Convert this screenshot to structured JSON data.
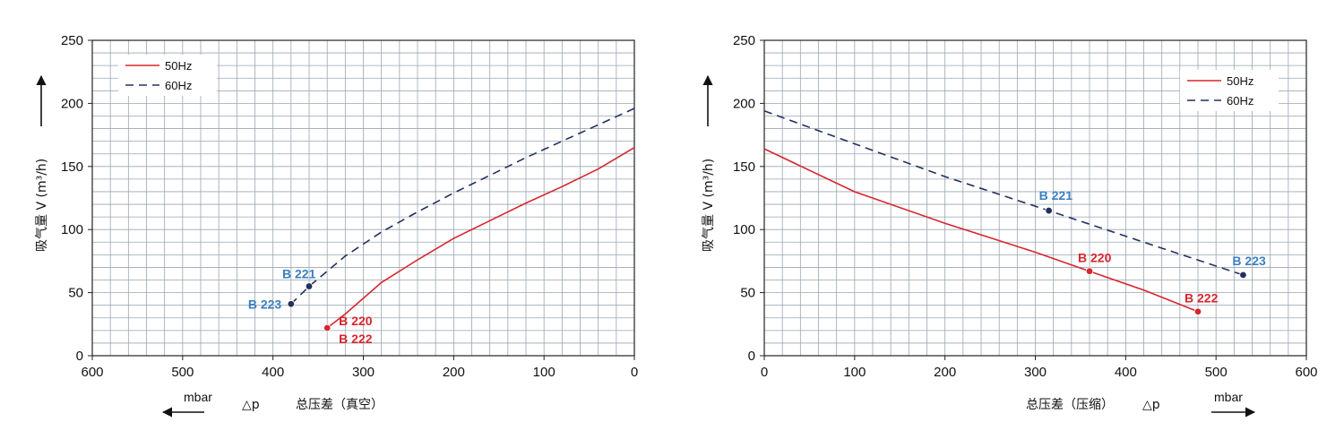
{
  "colors": {
    "grid": "#9aa6b2",
    "series_50": "#d7262e",
    "series_60": "#23305f",
    "label_blue": "#3a7fc1",
    "label_red": "#d7262e"
  },
  "chart_data": [
    {
      "type": "line",
      "xlabel": "总压差（真空）",
      "xlabel_symbol": "△p",
      "ylabel": "吸气量 V (m³/h)",
      "unit": "mbar",
      "xlim": [
        0,
        600
      ],
      "x_reversed": true,
      "ylim": [
        0,
        250
      ],
      "grid": true,
      "legend_position": "top-left",
      "x_ticks": [
        "0",
        "100",
        "200",
        "300",
        "400",
        "500",
        "600"
      ],
      "y_ticks": [
        "0",
        "50",
        "100",
        "150",
        "200",
        "250"
      ],
      "series": [
        {
          "name": "50Hz",
          "style": "solid",
          "x": [
            0,
            40,
            80,
            120,
            160,
            200,
            240,
            280,
            320,
            340
          ],
          "y": [
            165,
            148,
            134,
            121,
            107,
            93,
            76,
            58,
            33,
            22
          ]
        },
        {
          "name": "60Hz",
          "style": "dashed",
          "x": [
            0,
            40,
            80,
            120,
            160,
            200,
            240,
            280,
            320,
            360,
            380
          ],
          "y": [
            196,
            183,
            170,
            157,
            143,
            129,
            114,
            98,
            79,
            55,
            41
          ]
        }
      ],
      "points": [
        {
          "label": "B 221",
          "x": 360,
          "y": 55,
          "color": "blue"
        },
        {
          "label": "B 223",
          "x": 380,
          "y": 41,
          "color": "blue"
        },
        {
          "label": "B 220",
          "x": 340,
          "y": 22,
          "color": "red"
        },
        {
          "label": "B 222",
          "x": 340,
          "y": 22,
          "color": "red"
        }
      ]
    },
    {
      "type": "line",
      "xlabel": "总压差（压缩）",
      "xlabel_symbol": "△p",
      "ylabel": "吸气量 V (m³/h)",
      "unit": "mbar",
      "xlim": [
        0,
        600
      ],
      "x_reversed": false,
      "ylim": [
        0,
        250
      ],
      "grid": true,
      "legend_position": "top-right",
      "x_ticks": [
        "0",
        "100",
        "200",
        "300",
        "400",
        "500",
        "600"
      ],
      "y_ticks": [
        "0",
        "50",
        "100",
        "150",
        "200",
        "250"
      ],
      "series": [
        {
          "name": "50Hz",
          "style": "solid",
          "x": [
            0,
            100,
            200,
            300,
            360,
            420,
            480
          ],
          "y": [
            164,
            130,
            105,
            82,
            67,
            52,
            35
          ]
        },
        {
          "name": "60Hz",
          "style": "dashed",
          "x": [
            0,
            100,
            200,
            315,
            420,
            530
          ],
          "y": [
            194,
            168,
            142,
            115,
            90,
            64
          ]
        }
      ],
      "points": [
        {
          "label": "B 221",
          "x": 315,
          "y": 115,
          "color": "blue"
        },
        {
          "label": "B 223",
          "x": 530,
          "y": 64,
          "color": "blue"
        },
        {
          "label": "B 220",
          "x": 360,
          "y": 67,
          "color": "red"
        },
        {
          "label": "B 222",
          "x": 480,
          "y": 35,
          "color": "red"
        }
      ]
    }
  ]
}
